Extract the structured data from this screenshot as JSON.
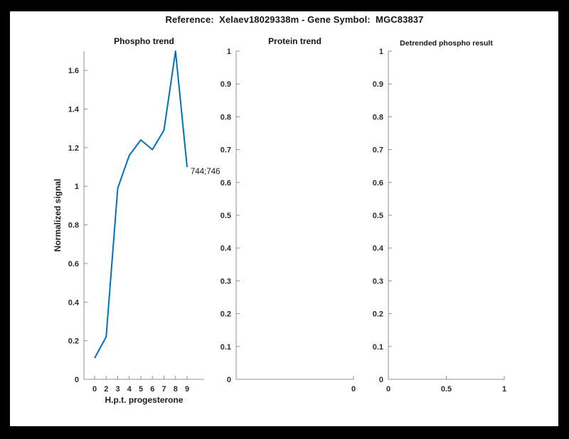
{
  "figure": {
    "title": "Reference:  Xelaev18029338m - Gene Symbol:  MGC83837",
    "background_color": "#000000",
    "panel_color": "#ffffff",
    "accent_line_color": "#0072BD",
    "axis_color": "#8f8f8f",
    "text_color": "#2b2b2b"
  },
  "chart_data": [
    {
      "type": "line",
      "title": "Phospho trend",
      "xlabel": "H.p.t. progesterone",
      "ylabel": "Normalized signal",
      "categories": [
        "0",
        "2",
        "3",
        "4",
        "5",
        "6",
        "7",
        "8",
        "9"
      ],
      "values": [
        0.11,
        0.22,
        0.99,
        1.16,
        1.24,
        1.19,
        1.29,
        1.7,
        1.1
      ],
      "ylim": [
        0,
        1.7
      ],
      "y_ticks": [
        0,
        0.2,
        0.4,
        0.6,
        0.8,
        1.0,
        1.2,
        1.4,
        1.6
      ],
      "y_tick_labels": [
        "0",
        "0.2",
        "0.4",
        "0.6",
        "0.8",
        "1",
        "1.2",
        "1.4",
        "1.6"
      ],
      "grid": false,
      "annotation": {
        "text": "744;746",
        "at_category": "9",
        "value": 1.1
      }
    },
    {
      "type": "line",
      "title": "Protein trend",
      "xlabel": "",
      "ylabel": "",
      "values": [],
      "ylim": [
        0,
        1
      ],
      "y_ticks": [
        0,
        0.1,
        0.2,
        0.3,
        0.4,
        0.5,
        0.6,
        0.7,
        0.8,
        0.9,
        1.0
      ],
      "y_tick_labels": [
        "0",
        "0.1",
        "0.2",
        "0.3",
        "0.4",
        "0.5",
        "0.6",
        "0.7",
        "0.8",
        "0.9",
        "1"
      ],
      "x_ticks": [
        {
          "pos": 1,
          "label": "0"
        }
      ],
      "grid": false
    },
    {
      "type": "line",
      "title": "Detrended phospho result",
      "xlabel": "",
      "ylabel": "",
      "values": [],
      "ylim": [
        0,
        1
      ],
      "y_ticks": [
        0,
        0.1,
        0.2,
        0.3,
        0.4,
        0.5,
        0.6,
        0.7,
        0.8,
        0.9,
        1.0
      ],
      "y_tick_labels": [
        "0",
        "0.1",
        "0.2",
        "0.3",
        "0.4",
        "0.5",
        "0.6",
        "0.7",
        "0.8",
        "0.9",
        "1"
      ],
      "x_ticks": [
        {
          "pos": 0,
          "label": "0"
        },
        {
          "pos": 0.5,
          "label": "0.5"
        },
        {
          "pos": 1,
          "label": "1"
        }
      ],
      "grid": false
    }
  ]
}
